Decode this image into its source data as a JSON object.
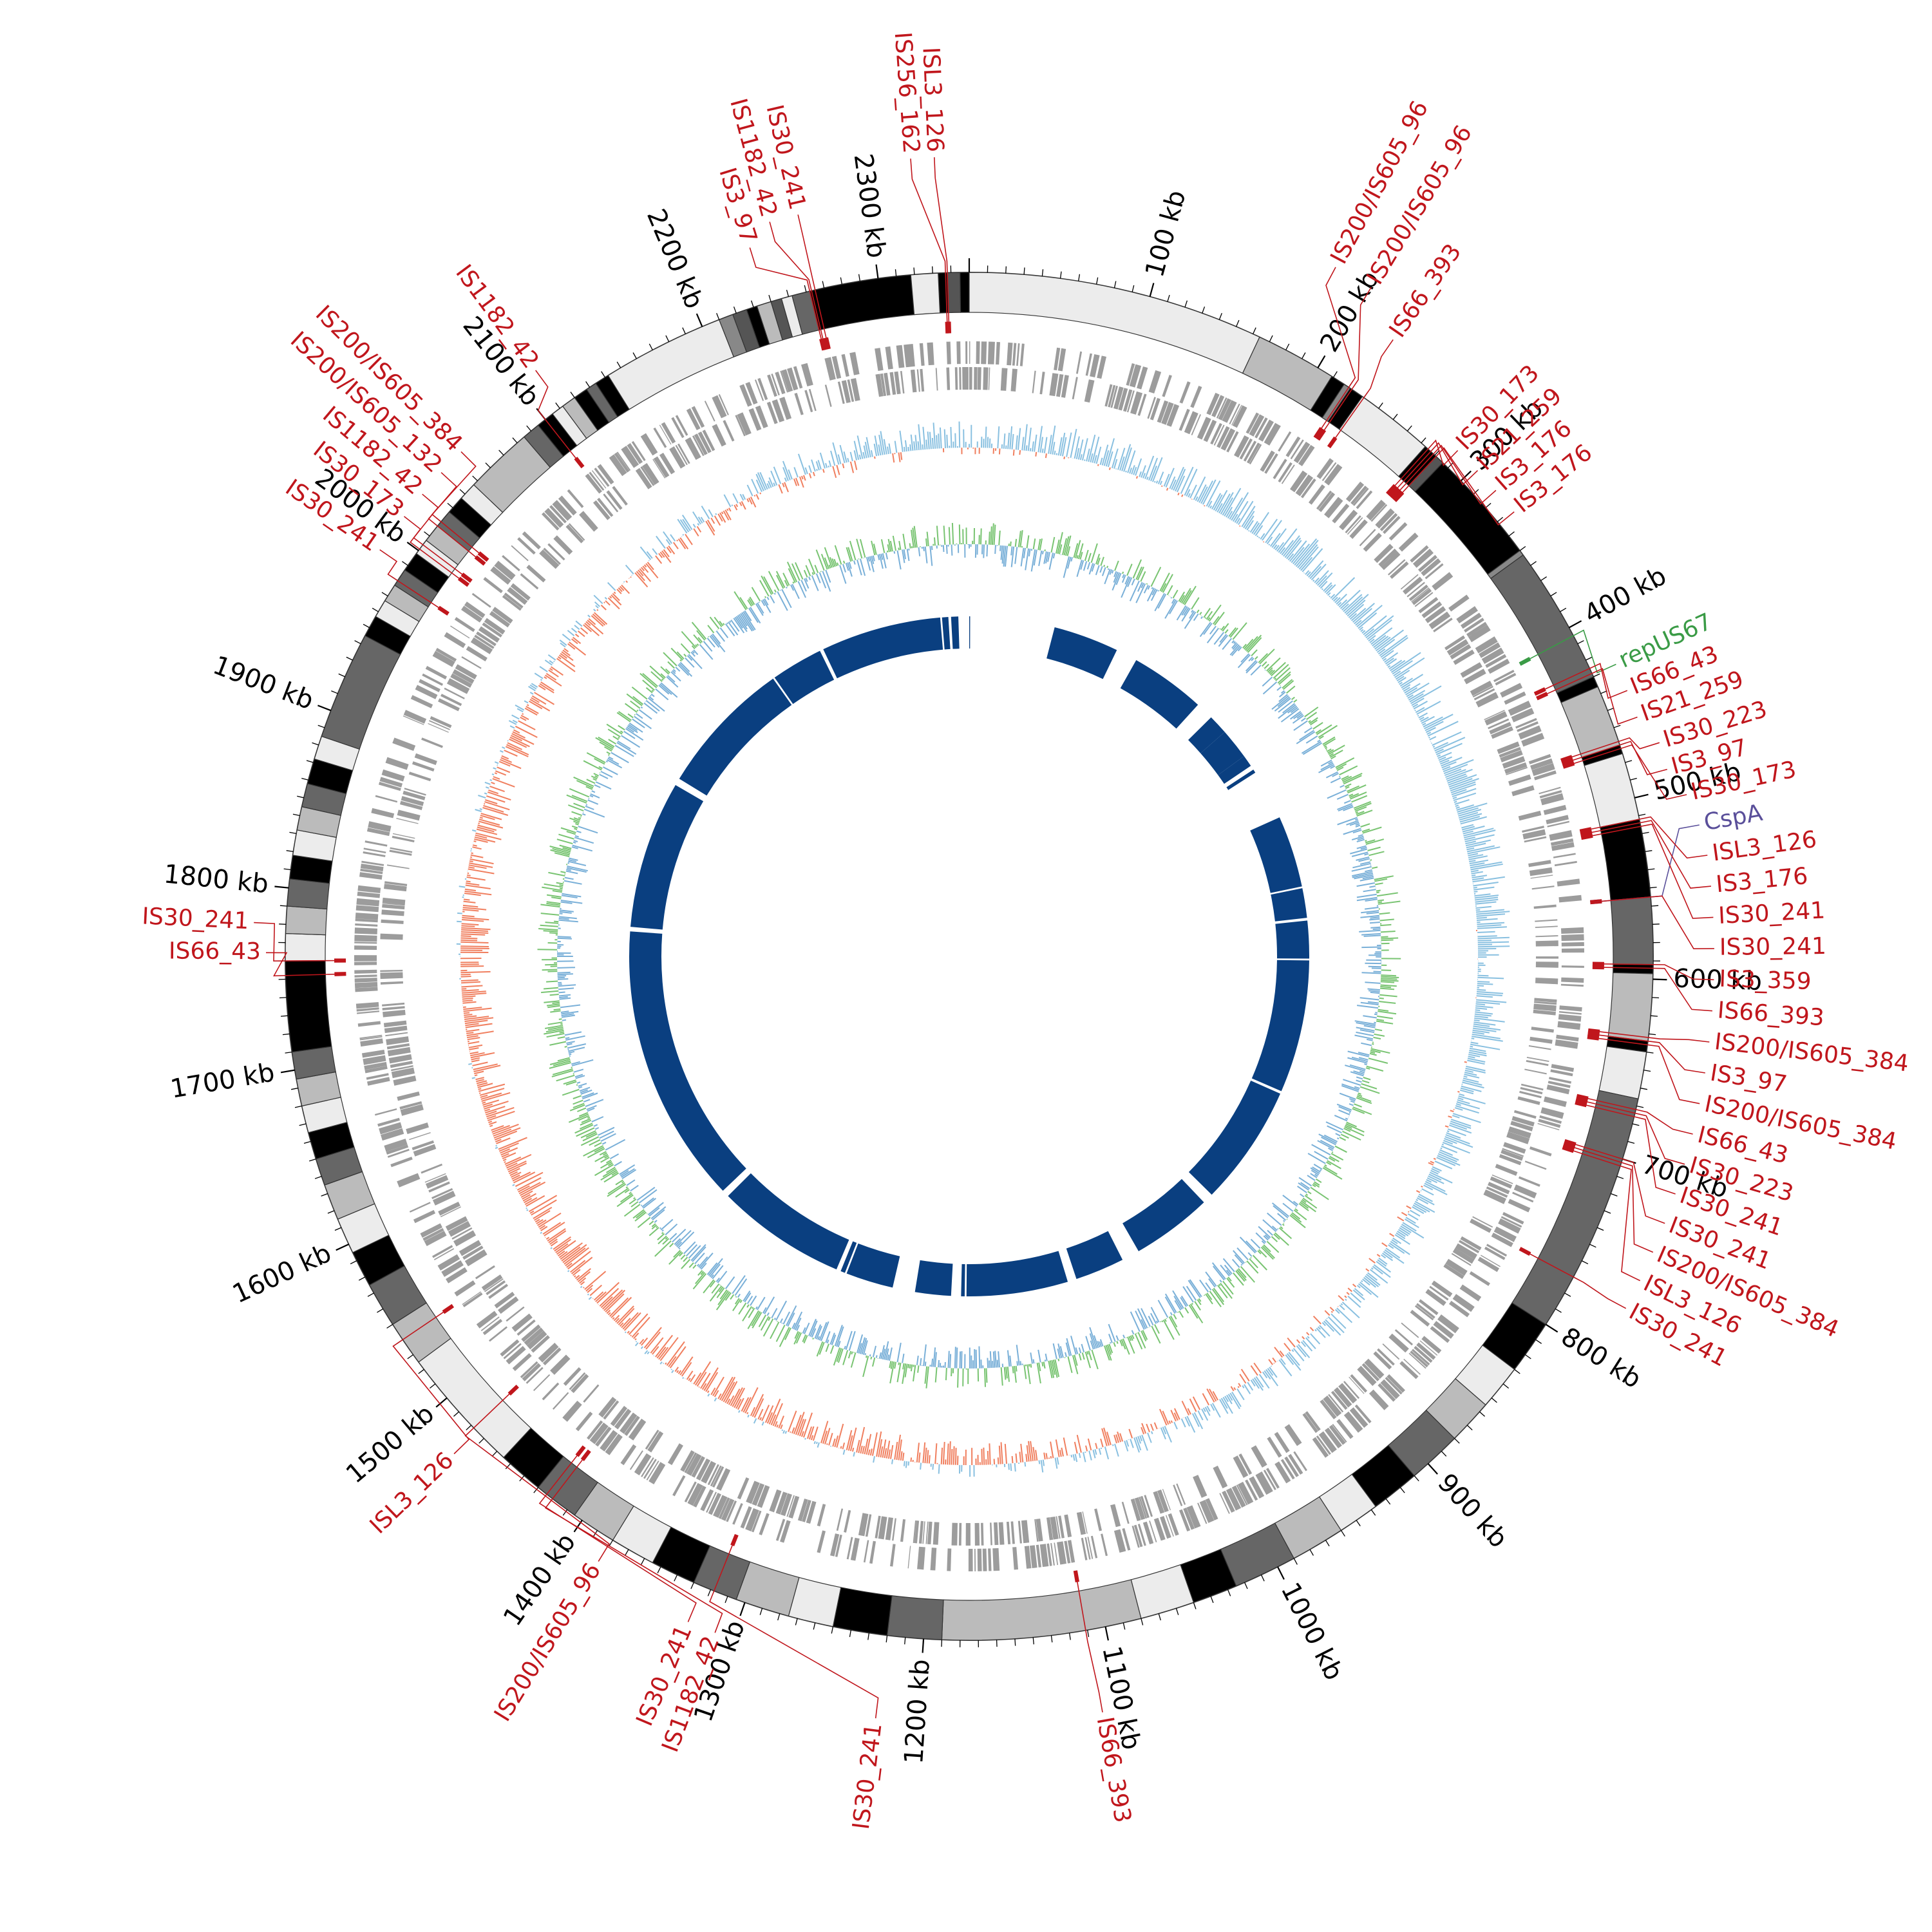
{
  "genome_length_kb": 2350,
  "colors": {
    "is_element": "#c0161c",
    "rep_gene": "#3a9b46",
    "csp_gene": "#5a4f9a",
    "gene_track": "#9c9c9c",
    "gc_skew_pos": "#89c0e0",
    "gc_skew_neg": "#f07f5f",
    "gc_content": "#79c472",
    "gc_content_alt": "#7ab0d8",
    "blast_track": "#0a3f80"
  },
  "scale": {
    "tick_labels": [
      {
        "kb": 100,
        "text": "100 kb"
      },
      {
        "kb": 200,
        "text": "200 kb"
      },
      {
        "kb": 300,
        "text": "300 kb"
      },
      {
        "kb": 400,
        "text": "400 kb"
      },
      {
        "kb": 500,
        "text": "500 kb"
      },
      {
        "kb": 600,
        "text": "600 kb"
      },
      {
        "kb": 700,
        "text": "700 kb"
      },
      {
        "kb": 800,
        "text": "800 kb"
      },
      {
        "kb": 900,
        "text": "900 kb"
      },
      {
        "kb": 1000,
        "text": "1000 kb"
      },
      {
        "kb": 1100,
        "text": "1100 kb"
      },
      {
        "kb": 1200,
        "text": "1200 kb"
      },
      {
        "kb": 1300,
        "text": "1300 kb"
      },
      {
        "kb": 1400,
        "text": "1400 kb"
      },
      {
        "kb": 1500,
        "text": "1500 kb"
      },
      {
        "kb": 1600,
        "text": "1600 kb"
      },
      {
        "kb": 1700,
        "text": "1700 kb"
      },
      {
        "kb": 1800,
        "text": "1800 kb"
      },
      {
        "kb": 1900,
        "text": "1900 kb"
      },
      {
        "kb": 2000,
        "text": "2000 kb"
      },
      {
        "kb": 2100,
        "text": "2100 kb"
      },
      {
        "kb": 2200,
        "text": "2200 kb"
      },
      {
        "kb": 2300,
        "text": "2300 kb"
      }
    ]
  },
  "contig_blocks": [
    {
      "start": 2333,
      "end": 2338,
      "shade": "#000000"
    },
    {
      "start": 2338,
      "end": 2345,
      "shade": "#555555"
    },
    {
      "start": 2345,
      "end": 2350,
      "shade": "#000000"
    },
    {
      "start": 0,
      "end": 164,
      "shade": "#ececec"
    },
    {
      "start": 164,
      "end": 209,
      "shade": "#bbbbbb"
    },
    {
      "start": 209,
      "end": 217,
      "shade": "#000000"
    },
    {
      "start": 217,
      "end": 221,
      "shade": "#888888"
    },
    {
      "start": 221,
      "end": 229,
      "shade": "#000000"
    },
    {
      "start": 229,
      "end": 273,
      "shade": "#ececec"
    },
    {
      "start": 273,
      "end": 281,
      "shade": "#000000"
    },
    {
      "start": 281,
      "end": 286,
      "shade": "#555555"
    },
    {
      "start": 286,
      "end": 350,
      "shade": "#000000"
    },
    {
      "start": 350,
      "end": 353,
      "shade": "#888888"
    },
    {
      "start": 353,
      "end": 430,
      "shade": "#666666"
    },
    {
      "start": 430,
      "end": 436,
      "shade": "#000000"
    },
    {
      "start": 436,
      "end": 470,
      "shade": "#bbbbbb"
    },
    {
      "start": 470,
      "end": 475,
      "shade": "#000000"
    },
    {
      "start": 475,
      "end": 512,
      "shade": "#ececec"
    },
    {
      "start": 512,
      "end": 555,
      "shade": "#000000"
    },
    {
      "start": 555,
      "end": 592,
      "shade": "#666666"
    },
    {
      "start": 592,
      "end": 597,
      "shade": "#000000"
    },
    {
      "start": 597,
      "end": 634,
      "shade": "#bbbbbb"
    },
    {
      "start": 634,
      "end": 640,
      "shade": "#000000"
    },
    {
      "start": 640,
      "end": 666,
      "shade": "#ececec"
    },
    {
      "start": 666,
      "end": 800,
      "shade": "#666666"
    },
    {
      "start": 800,
      "end": 830,
      "shade": "#000000"
    },
    {
      "start": 830,
      "end": 855,
      "shade": "#ececec"
    },
    {
      "start": 855,
      "end": 880,
      "shade": "#bbbbbb"
    },
    {
      "start": 880,
      "end": 910,
      "shade": "#666666"
    },
    {
      "start": 910,
      "end": 937,
      "shade": "#000000"
    },
    {
      "start": 937,
      "end": 960,
      "shade": "#ececec"
    },
    {
      "start": 960,
      "end": 990,
      "shade": "#bbbbbb"
    },
    {
      "start": 990,
      "end": 1025,
      "shade": "#666666"
    },
    {
      "start": 1025,
      "end": 1050,
      "shade": "#000000"
    },
    {
      "start": 1050,
      "end": 1080,
      "shade": "#ececec"
    },
    {
      "start": 1080,
      "end": 1190,
      "shade": "#bbbbbb"
    },
    {
      "start": 1190,
      "end": 1220,
      "shade": "#666666"
    },
    {
      "start": 1220,
      "end": 1250,
      "shade": "#000000"
    },
    {
      "start": 1250,
      "end": 1275,
      "shade": "#ececec"
    },
    {
      "start": 1275,
      "end": 1305,
      "shade": "#bbbbbb"
    },
    {
      "start": 1305,
      "end": 1330,
      "shade": "#666666"
    },
    {
      "start": 1330,
      "end": 1355,
      "shade": "#000000"
    },
    {
      "start": 1355,
      "end": 1380,
      "shade": "#ececec"
    },
    {
      "start": 1380,
      "end": 1405,
      "shade": "#bbbbbb"
    },
    {
      "start": 1405,
      "end": 1430,
      "shade": "#666666"
    },
    {
      "start": 1430,
      "end": 1455,
      "shade": "#000000"
    },
    {
      "start": 1455,
      "end": 1525,
      "shade": "#ececec"
    },
    {
      "start": 1525,
      "end": 1550,
      "shade": "#bbbbbb"
    },
    {
      "start": 1550,
      "end": 1575,
      "shade": "#666666"
    },
    {
      "start": 1575,
      "end": 1595,
      "shade": "#000000"
    },
    {
      "start": 1595,
      "end": 1615,
      "shade": "#ececec"
    },
    {
      "start": 1615,
      "end": 1635,
      "shade": "#bbbbbb"
    },
    {
      "start": 1635,
      "end": 1650,
      "shade": "#666666"
    },
    {
      "start": 1650,
      "end": 1665,
      "shade": "#000000"
    },
    {
      "start": 1665,
      "end": 1680,
      "shade": "#ececec"
    },
    {
      "start": 1680,
      "end": 1695,
      "shade": "#bbbbbb"
    },
    {
      "start": 1695,
      "end": 1710,
      "shade": "#666666"
    },
    {
      "start": 1710,
      "end": 1760,
      "shade": "#000000"
    },
    {
      "start": 1760,
      "end": 1775,
      "shade": "#ececec"
    },
    {
      "start": 1775,
      "end": 1790,
      "shade": "#bbbbbb"
    },
    {
      "start": 1790,
      "end": 1805,
      "shade": "#666666"
    },
    {
      "start": 1805,
      "end": 1818,
      "shade": "#000000"
    },
    {
      "start": 1818,
      "end": 1832,
      "shade": "#ececec"
    },
    {
      "start": 1832,
      "end": 1845,
      "shade": "#bbbbbb"
    },
    {
      "start": 1845,
      "end": 1858,
      "shade": "#666666"
    },
    {
      "start": 1858,
      "end": 1872,
      "shade": "#000000"
    },
    {
      "start": 1872,
      "end": 1885,
      "shade": "#ececec"
    },
    {
      "start": 1885,
      "end": 1945,
      "shade": "#666666"
    },
    {
      "start": 1945,
      "end": 1957,
      "shade": "#000000"
    },
    {
      "start": 1957,
      "end": 1967,
      "shade": "#ececec"
    },
    {
      "start": 1967,
      "end": 1977,
      "shade": "#bbbbbb"
    },
    {
      "start": 1977,
      "end": 1987,
      "shade": "#666666"
    },
    {
      "start": 1987,
      "end": 1998,
      "shade": "#000000"
    },
    {
      "start": 1998,
      "end": 2007,
      "shade": "#ececec"
    },
    {
      "start": 2007,
      "end": 2017,
      "shade": "#bbbbbb"
    },
    {
      "start": 2017,
      "end": 2027,
      "shade": "#666666"
    },
    {
      "start": 2027,
      "end": 2037,
      "shade": "#000000"
    },
    {
      "start": 2037,
      "end": 2047,
      "shade": "#ececec"
    },
    {
      "start": 2047,
      "end": 2085,
      "shade": "#bbbbbb"
    },
    {
      "start": 2085,
      "end": 2095,
      "shade": "#666666"
    },
    {
      "start": 2095,
      "end": 2105,
      "shade": "#000000"
    },
    {
      "start": 2105,
      "end": 2112,
      "shade": "#ececec"
    },
    {
      "start": 2112,
      "end": 2120,
      "shade": "#bbbbbb"
    },
    {
      "start": 2120,
      "end": 2128,
      "shade": "#000000"
    },
    {
      "start": 2128,
      "end": 2134,
      "shade": "#666666"
    },
    {
      "start": 2134,
      "end": 2142,
      "shade": "#000000"
    },
    {
      "start": 2142,
      "end": 2210,
      "shade": "#ececec"
    },
    {
      "start": 2210,
      "end": 2218,
      "shade": "#888888"
    },
    {
      "start": 2218,
      "end": 2226,
      "shade": "#555555"
    },
    {
      "start": 2226,
      "end": 2232,
      "shade": "#000000"
    },
    {
      "start": 2232,
      "end": 2240,
      "shade": "#bbbbbb"
    },
    {
      "start": 2240,
      "end": 2246,
      "shade": "#555555"
    },
    {
      "start": 2246,
      "end": 2252,
      "shade": "#ececec"
    },
    {
      "start": 2252,
      "end": 2262,
      "shade": "#666666"
    },
    {
      "start": 2262,
      "end": 2318,
      "shade": "#000000"
    },
    {
      "start": 2318,
      "end": 2333,
      "shade": "#ececec"
    }
  ],
  "blast_segments": [
    {
      "start": 0,
      "end": 1
    },
    {
      "start": 95,
      "end": 168
    },
    {
      "start": 192,
      "end": 276
    },
    {
      "start": 296,
      "end": 318
    },
    {
      "start": 318,
      "end": 352
    },
    {
      "start": 352,
      "end": 365
    },
    {
      "start": 370,
      "end": 374
    },
    {
      "start": 430,
      "end": 510
    },
    {
      "start": 512,
      "end": 545
    },
    {
      "start": 548,
      "end": 590
    },
    {
      "start": 592,
      "end": 740
    },
    {
      "start": 743,
      "end": 878
    },
    {
      "start": 890,
      "end": 980
    },
    {
      "start": 1000,
      "end": 1055
    },
    {
      "start": 1065,
      "end": 1178
    },
    {
      "start": 1180,
      "end": 1184
    },
    {
      "start": 1195,
      "end": 1235
    },
    {
      "start": 1260,
      "end": 1313
    },
    {
      "start": 1315,
      "end": 1320
    },
    {
      "start": 1325,
      "end": 1470
    },
    {
      "start": 1478,
      "end": 1790
    },
    {
      "start": 1795,
      "end": 1960
    },
    {
      "start": 1968,
      "end": 2120
    },
    {
      "start": 2122,
      "end": 2180
    },
    {
      "start": 2184,
      "end": 2318
    },
    {
      "start": 2320,
      "end": 2327
    },
    {
      "start": 2330,
      "end": 2338
    }
  ],
  "annotations": [
    {
      "kb": 2338,
      "label": "ISL3_126",
      "kind": "is"
    },
    {
      "kb": 2337,
      "label": "IS256_162",
      "kind": "is"
    },
    {
      "kb": 2265,
      "label": "IS30_241",
      "kind": "is"
    },
    {
      "kb": 2263,
      "label": "IS1182_42",
      "kind": "is"
    },
    {
      "kb": 2262,
      "label": "IS3_97",
      "kind": "is"
    },
    {
      "kb": 2100,
      "label": "IS1182_42",
      "kind": "is"
    },
    {
      "kb": 2020,
      "label": "IS200/IS605_384",
      "kind": "is"
    },
    {
      "kb": 2017,
      "label": "IS200/IS605_132",
      "kind": "is"
    },
    {
      "kb": 2004,
      "label": "IS1182_42",
      "kind": "is"
    },
    {
      "kb": 2001,
      "label": "IS30_173",
      "kind": "is"
    },
    {
      "kb": 1980,
      "label": "IS30_241",
      "kind": "is"
    },
    {
      "kb": 1760,
      "label": "IS30_241",
      "kind": "is"
    },
    {
      "kb": 1752,
      "label": "IS66_43",
      "kind": "is"
    },
    {
      "kb": 1540,
      "label": "ISL3_126",
      "kind": "is"
    },
    {
      "kb": 1478,
      "label": "IS200/IS605_96",
      "kind": "is"
    },
    {
      "kb": 1424,
      "label": "IS30_241",
      "kind": "is"
    },
    {
      "kb": 1420,
      "label": "IS1182_42",
      "kind": "is"
    },
    {
      "kb": 1318,
      "label": "IS30_241",
      "kind": "is"
    },
    {
      "kb": 1111,
      "label": "IS66_393",
      "kind": "is"
    },
    {
      "kb": 220,
      "label": "IS200/IS605_96",
      "kind": "is"
    },
    {
      "kb": 222,
      "label": "IS200/IS605_96",
      "kind": "is"
    },
    {
      "kb": 230,
      "label": "IS66_393",
      "kind": "is"
    },
    {
      "kb": 275,
      "label": "IS30_173",
      "kind": "is"
    },
    {
      "kb": 277,
      "label": "IS21_259",
      "kind": "is"
    },
    {
      "kb": 279,
      "label": "IS3_176",
      "kind": "is"
    },
    {
      "kb": 281,
      "label": "IS3_176",
      "kind": "is"
    },
    {
      "kb": 405,
      "label": "repUS67",
      "kind": "rep"
    },
    {
      "kb": 425,
      "label": "IS66_43",
      "kind": "is"
    },
    {
      "kb": 428,
      "label": "IS21_259",
      "kind": "is"
    },
    {
      "kb": 468,
      "label": "IS30_223",
      "kind": "is"
    },
    {
      "kb": 470,
      "label": "IS3_97",
      "kind": "is"
    },
    {
      "kb": 472,
      "label": "IS30_173",
      "kind": "is"
    },
    {
      "kb": 555,
      "label": "CspA",
      "kind": "csp"
    },
    {
      "kb": 512,
      "label": "ISL3_126",
      "kind": "is"
    },
    {
      "kb": 514,
      "label": "IS3_176",
      "kind": "is"
    },
    {
      "kb": 516,
      "label": "IS30_241",
      "kind": "is"
    },
    {
      "kb": 555,
      "label": "IS30_241",
      "kind": "is"
    },
    {
      "kb": 592,
      "label": "IS3_359",
      "kind": "is"
    },
    {
      "kb": 594,
      "label": "IS66_393",
      "kind": "is"
    },
    {
      "kb": 632,
      "label": "IS200/IS605_384",
      "kind": "is"
    },
    {
      "kb": 634,
      "label": "IS3_97",
      "kind": "is"
    },
    {
      "kb": 636,
      "label": "IS200/IS605_384",
      "kind": "is"
    },
    {
      "kb": 672,
      "label": "IS66_43",
      "kind": "is"
    },
    {
      "kb": 674,
      "label": "IS30_223",
      "kind": "is"
    },
    {
      "kb": 676,
      "label": "IS30_241",
      "kind": "is"
    },
    {
      "kb": 700,
      "label": "IS30_241",
      "kind": "is"
    },
    {
      "kb": 702,
      "label": "IS200/IS605_384",
      "kind": "is"
    },
    {
      "kb": 704,
      "label": "ISL3_126",
      "kind": "is"
    },
    {
      "kb": 770,
      "label": "IS30_241",
      "kind": "is"
    }
  ],
  "label_slots": [
    {
      "label": "ISL3_126",
      "deg": 357.5,
      "r": 1250
    },
    {
      "label": "IS256_162",
      "deg": 355.8,
      "r": 1250
    },
    {
      "label": "IS30_241",
      "deg": 347.0,
      "r": 1190
    },
    {
      "label": "IS1182_42",
      "deg": 344.8,
      "r": 1190
    },
    {
      "label": "IS3_97",
      "deg": 342.8,
      "r": 1160
    },
    {
      "label": "IS1182_42",
      "deg": 323.5,
      "r": 1140
    },
    {
      "label": "IS200/IS605_384",
      "deg": 314.8,
      "r": 1120
    },
    {
      "label": "IS200/IS605_132",
      "deg": 312.5,
      "r": 1120
    },
    {
      "label": "IS1182_42",
      "deg": 310.2,
      "r": 1120
    },
    {
      "label": "IS30_173",
      "deg": 307.9,
      "r": 1120
    },
    {
      "label": "IS30_241",
      "deg": 304.6,
      "r": 1120
    },
    {
      "label": "IS30_241",
      "deg": 272.7,
      "r": 1120
    },
    {
      "label": "IS66_43",
      "deg": 270.3,
      "r": 1100
    },
    {
      "label": "ISL3_126",
      "deg": 226.0,
      "r": 1120
    },
    {
      "label": "IS200/IS605_96",
      "deg": 211.5,
      "r": 1110
    },
    {
      "label": "IS30_241",
      "deg": 202.9,
      "r": 1130
    },
    {
      "label": "IS1182_42",
      "deg": 200.6,
      "r": 1130
    },
    {
      "label": "IS30_241",
      "deg": 187.0,
      "r": 1200
    },
    {
      "label": "IS66_393",
      "deg": 170.0,
      "r": 1200
    },
    {
      "label": "IS200/IS605_96",
      "deg": 28.0,
      "r": 1220
    },
    {
      "label": "IS200/IS605_96",
      "deg": 31.0,
      "r": 1220
    },
    {
      "label": "IS66_393",
      "deg": 34.5,
      "r": 1170
    },
    {
      "label": "IS30_173",
      "deg": 44.0,
      "r": 1100
    },
    {
      "label": "IS21_259",
      "deg": 46.3,
      "r": 1100
    },
    {
      "label": "IS3_176",
      "deg": 48.5,
      "r": 1100
    },
    {
      "label": "IS3_176",
      "deg": 50.8,
      "r": 1100
    },
    {
      "label": "repUS67",
      "deg": 65.7,
      "r": 1110
    },
    {
      "label": "IS66_43",
      "deg": 68.0,
      "r": 1110
    },
    {
      "label": "IS21_259",
      "deg": 70.3,
      "r": 1110
    },
    {
      "label": "IS30_223",
      "deg": 72.8,
      "r": 1130
    },
    {
      "label": "IS3_97",
      "deg": 75.0,
      "r": 1130
    },
    {
      "label": "IS30_173",
      "deg": 77.3,
      "r": 1150
    },
    {
      "label": "CspA",
      "deg": 79.8,
      "r": 1160
    },
    {
      "label": "ISL3_126",
      "deg": 82.2,
      "r": 1165
    },
    {
      "label": "IS3_176",
      "deg": 84.6,
      "r": 1165
    },
    {
      "label": "IS30_241",
      "deg": 87.0,
      "r": 1165
    },
    {
      "label": "IS30_241",
      "deg": 89.4,
      "r": 1165
    },
    {
      "label": "IS3_359",
      "deg": 91.8,
      "r": 1165
    },
    {
      "label": "IS66_393",
      "deg": 94.2,
      "r": 1165
    },
    {
      "label": "IS200/IS605_384",
      "deg": 96.6,
      "r": 1165
    },
    {
      "label": "IS3_97",
      "deg": 99.0,
      "r": 1165
    },
    {
      "label": "IS200/IS605_384",
      "deg": 101.4,
      "r": 1165
    },
    {
      "label": "IS66_43",
      "deg": 103.8,
      "r": 1165
    },
    {
      "label": "IS30_223",
      "deg": 106.2,
      "r": 1165
    },
    {
      "label": "IS30_241",
      "deg": 108.6,
      "r": 1165
    },
    {
      "label": "IS30_241",
      "deg": 111.0,
      "r": 1165
    },
    {
      "label": "IS200/IS605_384",
      "deg": 113.4,
      "r": 1165
    },
    {
      "label": "ISL3_126",
      "deg": 115.8,
      "r": 1165
    },
    {
      "label": "IS30_241",
      "deg": 118.2,
      "r": 1165
    }
  ]
}
